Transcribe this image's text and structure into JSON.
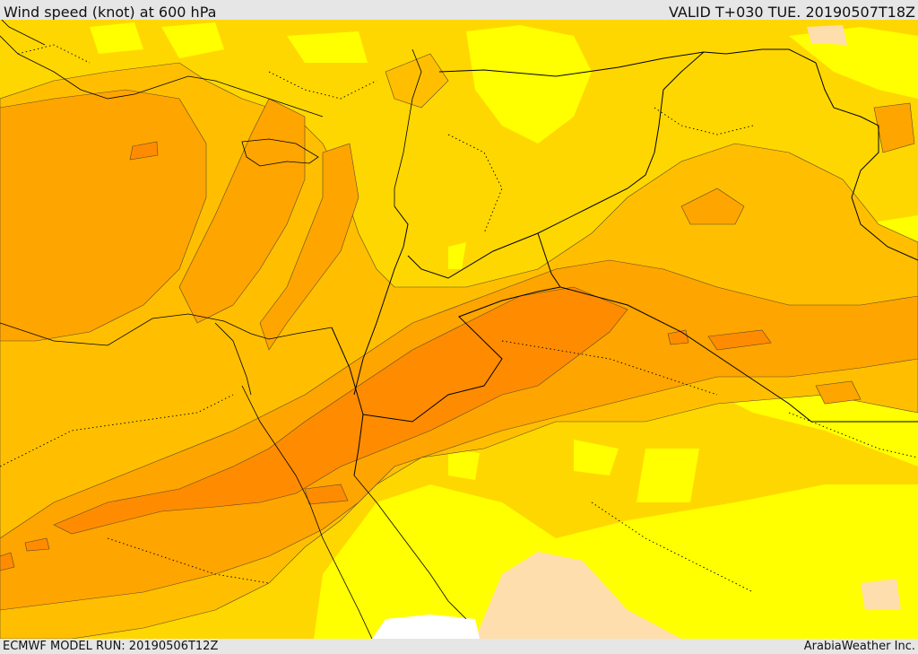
{
  "header": {
    "title": "Wind speed (knot) at 600 hPa",
    "valid": "VALID T+030 TUE. 20190507T18Z"
  },
  "footer": {
    "model_run": "ECMWF MODEL RUN: 20190506T12Z",
    "credit": "ArabiaWeather Inc."
  },
  "map": {
    "colors": {
      "band_white": "#ffffff",
      "band_tan": "#ffdead",
      "band_yellow": "#ffff00",
      "band_gold": "#ffd700",
      "band_amber": "#ffbf00",
      "band_orange": "#ffa500",
      "band_dark_orange": "#ff8c00",
      "band_deep_orange": "#ff7f00",
      "border_line": "#000000",
      "contour_line": "#5a4a2a"
    }
  }
}
